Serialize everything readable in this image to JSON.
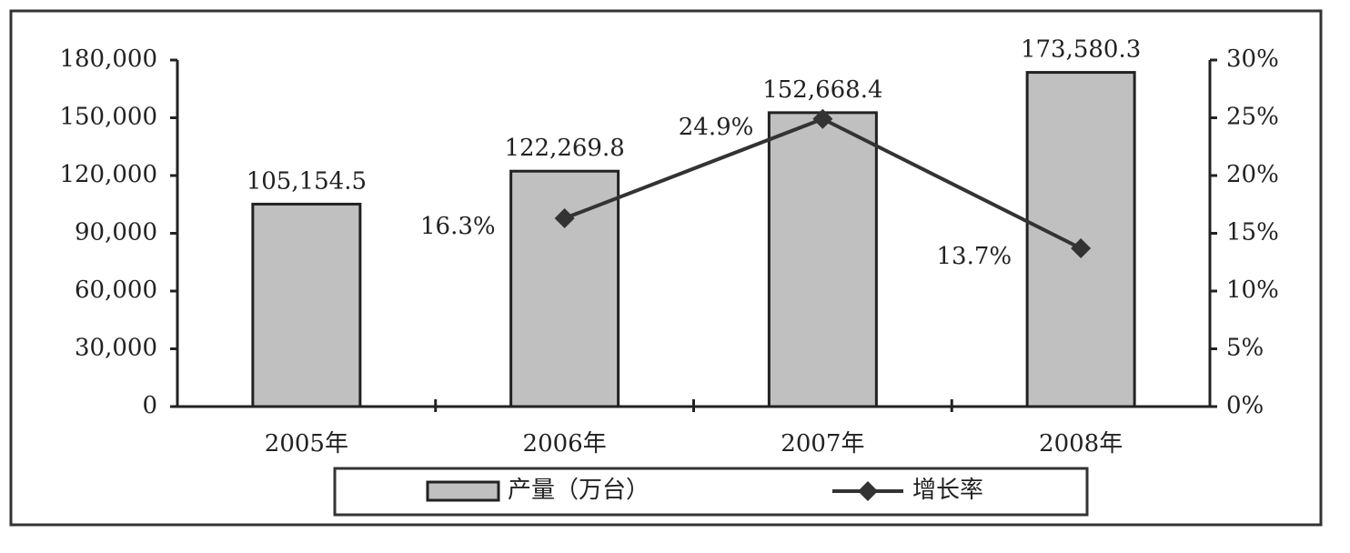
{
  "chart_data": {
    "type": "bar",
    "categories": [
      "2005年",
      "2006年",
      "2007年",
      "2008年"
    ],
    "series": [
      {
        "name": "产量（万台）",
        "type": "bar",
        "color": "#c0c0c0",
        "values": [
          105154.5,
          122269.8,
          152668.4,
          173580.3
        ],
        "value_labels": [
          "105,154.5",
          "122,269.8",
          "152,668.4",
          "173,580.3"
        ]
      },
      {
        "name": "增长率",
        "type": "line",
        "axis": "y2",
        "color": "#333333",
        "values": [
          null,
          16.3,
          24.9,
          13.7
        ],
        "value_labels": [
          null,
          "16.3%",
          "24.9%",
          "13.7%"
        ]
      }
    ],
    "ylim": [
      0,
      180000
    ],
    "yticks": [
      0,
      {
        "value": 30000,
        "label": "30,000"
      },
      {
        "value": 60000,
        "label": "60,000"
      },
      {
        "value": 90000,
        "label": "90,000"
      },
      {
        "value": 120000,
        "label": "120,000"
      },
      {
        "value": 150000,
        "label": "150,000"
      },
      {
        "value": 180000,
        "label": "180,000"
      }
    ],
    "y2lim": [
      0,
      30
    ],
    "y2ticks": [
      {
        "value": 0,
        "label": "0%"
      },
      {
        "value": 5,
        "label": "5%"
      },
      {
        "value": 10,
        "label": "10%"
      },
      {
        "value": 15,
        "label": "15%"
      },
      {
        "value": 20,
        "label": "20%"
      },
      {
        "value": 25,
        "label": "25%"
      },
      {
        "value": 30,
        "label": "30%"
      }
    ],
    "legend": "bottom"
  }
}
